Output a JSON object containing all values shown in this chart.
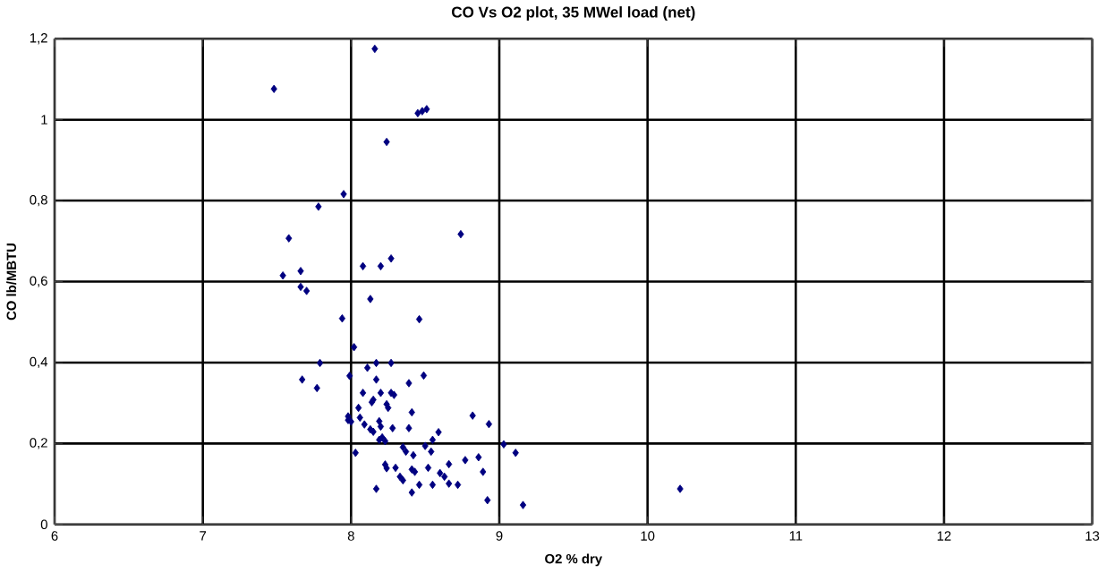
{
  "chart_data": {
    "type": "scatter",
    "title": "CO Vs O2 plot, 35 MWel load (net)",
    "xlabel": "O2 % dry",
    "ylabel": "CO  lb/MBTU",
    "xlim": [
      6,
      13
    ],
    "xticks": [
      6,
      7,
      8,
      9,
      10,
      11,
      12,
      13
    ],
    "ylim": [
      0,
      1.2
    ],
    "yticks": [
      0,
      {
        "value": 0.2,
        "label": "0,2"
      },
      {
        "value": 0.4,
        "label": "0,4"
      },
      {
        "value": 0.6,
        "label": "0,6"
      },
      {
        "value": 0.8,
        "label": "0,8"
      },
      1,
      {
        "value": 1.2,
        "label": "1,2"
      }
    ],
    "grid": true,
    "marker": "diamond",
    "series": [
      {
        "color": "#000080",
        "x": [
          8.16,
          7.48,
          8.45,
          8.48,
          8.51,
          8.24,
          7.95,
          7.78,
          8.74,
          7.58,
          7.54,
          7.66,
          7.66,
          7.7,
          8.08,
          8.2,
          8.27,
          8.13,
          7.94,
          8.46,
          8.02,
          7.79,
          7.67,
          7.77,
          7.99,
          8.11,
          8.17,
          8.27,
          8.17,
          8.39,
          8.49,
          8.08,
          8.15,
          8.14,
          8.2,
          8.27,
          8.29,
          8.24,
          8.25,
          8.41,
          8.05,
          7.98,
          7.98,
          8.0,
          8.06,
          8.09,
          8.13,
          8.15,
          8.19,
          8.2,
          8.28,
          8.39,
          8.59,
          8.82,
          8.93,
          8.21,
          8.23,
          8.19,
          8.03,
          8.35,
          8.37,
          8.42,
          8.5,
          8.55,
          8.54,
          9.03,
          9.11,
          8.77,
          8.86,
          8.89,
          8.66,
          8.23,
          8.24,
          8.3,
          8.41,
          8.43,
          8.52,
          8.6,
          8.63,
          8.33,
          8.35,
          8.46,
          8.55,
          8.66,
          8.72,
          8.17,
          8.41,
          8.92,
          9.16,
          10.22
        ],
        "values": [
          1.175,
          1.076,
          1.016,
          1.021,
          1.026,
          0.945,
          0.816,
          0.785,
          0.717,
          0.707,
          0.615,
          0.626,
          0.587,
          0.577,
          0.638,
          0.638,
          0.657,
          0.557,
          0.509,
          0.507,
          0.438,
          0.399,
          0.358,
          0.337,
          0.367,
          0.387,
          0.399,
          0.399,
          0.358,
          0.349,
          0.368,
          0.325,
          0.308,
          0.302,
          0.325,
          0.325,
          0.32,
          0.297,
          0.288,
          0.277,
          0.288,
          0.267,
          0.258,
          0.254,
          0.264,
          0.247,
          0.235,
          0.229,
          0.255,
          0.242,
          0.238,
          0.238,
          0.228,
          0.269,
          0.248,
          0.215,
          0.206,
          0.209,
          0.177,
          0.191,
          0.18,
          0.171,
          0.194,
          0.209,
          0.18,
          0.198,
          0.177,
          0.159,
          0.166,
          0.13,
          0.149,
          0.148,
          0.139,
          0.14,
          0.136,
          0.13,
          0.14,
          0.127,
          0.118,
          0.118,
          0.109,
          0.098,
          0.098,
          0.101,
          0.098,
          0.088,
          0.079,
          0.06,
          0.048,
          0.088
        ]
      }
    ]
  }
}
